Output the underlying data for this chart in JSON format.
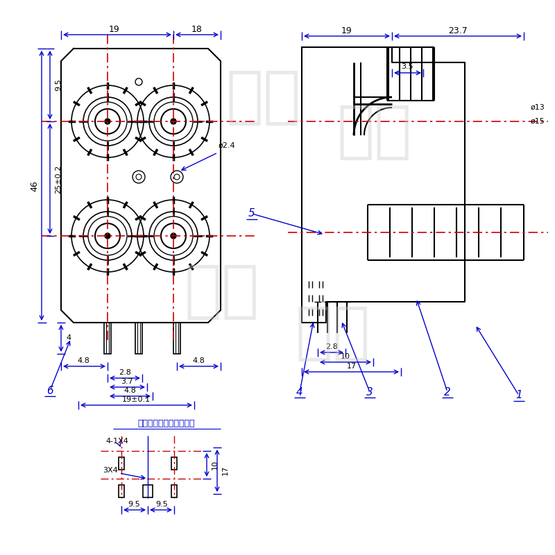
{
  "bg_color": "#ffffff",
  "blue": "#0000cc",
  "red_dash": "#cc0000",
  "black": "#000000",
  "dim_labels": {
    "top_19": "19",
    "top_18": "18",
    "left_46": "46",
    "left_9p5": "9.5",
    "left_25": "25±0.2",
    "bottom_4": "4",
    "bottom_4p8a": "4.8",
    "bottom_2p8": "2.8",
    "bottom_3p7": "3.7",
    "bottom_4p8b": "4.8",
    "bottom_19": "19±0.1",
    "bottom_4p8c": "4.8",
    "dia_2p4": "ø2.4",
    "right_19": "19",
    "right_23p7": "23.7",
    "right_3p5": "3.5",
    "right_2p8": "2.8",
    "right_10": "10",
    "right_17": "17",
    "right_d13": "ø13",
    "right_d15": "ø15",
    "pcb_title": "印制线路板推荐开孔尺寸",
    "pcb_4_1x4": "4-1X4",
    "pcb_3x4": "3X4",
    "pcb_9p5a": "9.5",
    "pcb_9p5b": "9.5",
    "pcb_10": "10",
    "pcb_17": "17",
    "label1": "1",
    "label2": "2",
    "label3": "3",
    "label4": "4",
    "label5": "5",
    "label6": "6"
  }
}
